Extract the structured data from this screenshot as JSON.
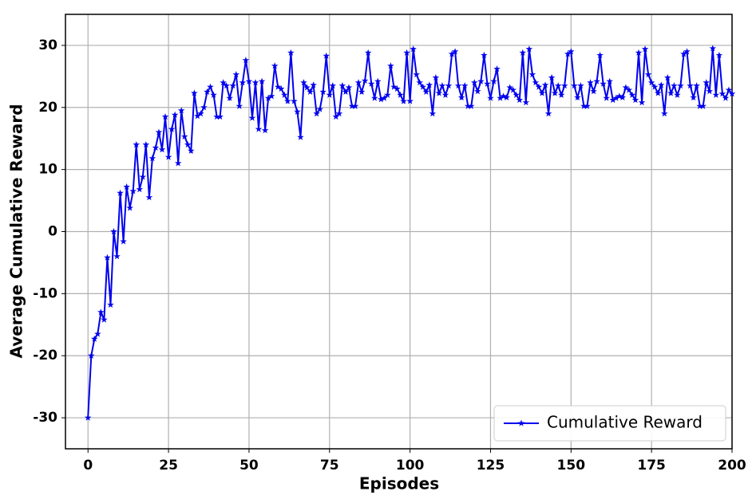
{
  "chart_data": {
    "type": "line",
    "xlabel": "Episodes",
    "ylabel": "Average Cumulative Reward",
    "x": [
      0,
      1,
      2,
      3,
      4,
      5,
      6,
      7,
      8,
      9,
      10,
      11,
      12,
      13,
      14,
      15,
      16,
      17,
      18,
      19,
      20,
      21,
      22,
      23,
      24,
      25,
      26,
      27,
      28,
      29,
      30,
      31,
      32,
      33,
      34,
      35,
      36,
      37,
      38,
      39,
      40,
      41,
      42,
      43,
      44,
      45,
      46,
      47,
      48,
      49,
      50,
      51,
      52,
      53,
      54,
      55,
      56,
      57,
      58,
      59,
      60,
      61,
      62,
      63,
      64,
      65,
      66,
      67,
      68,
      69,
      70,
      71,
      72,
      73,
      74,
      75,
      76,
      77,
      78,
      79,
      80,
      81,
      82,
      83,
      84,
      85,
      86,
      87,
      88,
      89,
      90,
      91,
      92,
      93,
      94,
      95,
      96,
      97,
      98,
      99,
      100,
      101,
      102,
      103,
      104,
      105,
      106,
      107,
      108,
      109,
      110,
      111,
      112,
      113,
      114,
      115,
      116,
      117,
      118,
      119,
      120,
      121,
      122,
      123,
      124,
      125,
      126,
      127,
      128,
      129,
      130,
      131,
      132,
      133,
      134,
      135,
      136,
      137,
      138,
      139,
      140,
      141,
      142,
      143,
      144,
      145,
      146,
      147,
      148,
      149,
      150,
      151,
      152,
      153,
      154,
      155,
      156,
      157,
      158,
      159,
      160,
      161,
      162,
      163,
      164,
      165,
      166,
      167,
      168,
      169,
      170,
      171,
      172,
      173,
      174,
      175,
      176,
      177,
      178,
      179,
      180,
      181,
      182,
      183,
      184,
      185,
      186,
      187,
      188,
      189,
      190,
      191,
      192,
      193,
      194,
      195,
      196,
      197,
      198,
      199,
      200
    ],
    "series": [
      {
        "name": "Cumulative Reward",
        "color": "#0000ee",
        "values": [
          -30,
          -20,
          -17.3,
          -16.5,
          -13,
          -14.2,
          -4.2,
          -11.8,
          0,
          -4,
          6.2,
          -1.6,
          7.2,
          3.8,
          6.5,
          14,
          6.8,
          8.8,
          14,
          5.5,
          11.8,
          13.5,
          16,
          13.2,
          18.5,
          12,
          16.5,
          18.8,
          11,
          19.5,
          15.3,
          14,
          13,
          22.3,
          18.6,
          19,
          20,
          22.5,
          23.3,
          22,
          18.5,
          18.5,
          24,
          23.5,
          21.5,
          23.5,
          25.3,
          20.2,
          24,
          27.6,
          24.2,
          18.3,
          24,
          16.5,
          24.2,
          16.3,
          21.5,
          21.8,
          26.7,
          23.3,
          23,
          22,
          21,
          28.8,
          21,
          19.3,
          15.2,
          24,
          23.2,
          22.5,
          23.6,
          19,
          19.7,
          22.5,
          28.3,
          22,
          23.5,
          18.5,
          19,
          23.5,
          22.5,
          23.2,
          20.2,
          20.2,
          24,
          22.5,
          24.3,
          28.8,
          23.8,
          21.5,
          24.2,
          21.3,
          21.5,
          22,
          26.7,
          23.3,
          23,
          22,
          21,
          28.8,
          21,
          29.4,
          25.3,
          24,
          23.3,
          22.5,
          23.6,
          19,
          24.8,
          22.3,
          23.5,
          22,
          23.5,
          28.6,
          29,
          23.5,
          21.6,
          23.5,
          20.2,
          20.2,
          24,
          22.6,
          24.2,
          28.4,
          23.8,
          21.5,
          24.2,
          26.2,
          21.5,
          21.8,
          21.6,
          23.2,
          22.8,
          22,
          21.2,
          28.8,
          20.8,
          29.4,
          25.3,
          24,
          23.3,
          22.3,
          23.6,
          19,
          24.8,
          22.3,
          23.5,
          22,
          23.5,
          28.6,
          29,
          23.5,
          21.6,
          23.5,
          20.2,
          20.2,
          24,
          22.6,
          24.2,
          28.4,
          23.8,
          21.5,
          24.2,
          21.2,
          21.5,
          21.8,
          21.6,
          23.2,
          22.8,
          22,
          21.2,
          28.8,
          20.8,
          29.4,
          25.3,
          24,
          23.3,
          22.3,
          23.6,
          19,
          24.8,
          22.3,
          23.5,
          22,
          23.5,
          28.6,
          29,
          23.5,
          21.6,
          23.5,
          20.2,
          20.2,
          24,
          22.6,
          29.5,
          22,
          28.4,
          22.2,
          21.5,
          22.8,
          22.2
        ]
      }
    ],
    "xlim": [
      -7,
      200
    ],
    "ylim": [
      -35,
      35
    ],
    "xticks": [
      0,
      25,
      50,
      75,
      100,
      125,
      150,
      175,
      200
    ],
    "yticks": [
      -30,
      -20,
      -10,
      0,
      10,
      20,
      30
    ],
    "grid": true,
    "legend": "lower right"
  }
}
